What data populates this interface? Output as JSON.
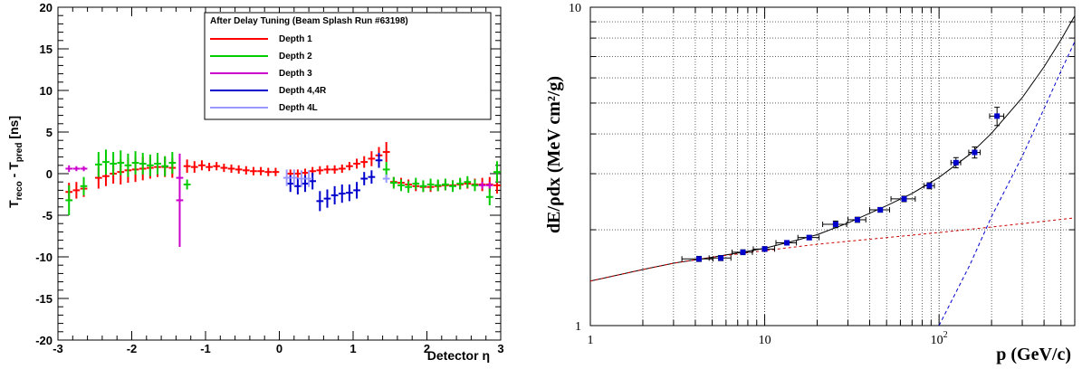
{
  "chart_data": [
    {
      "type": "scatter",
      "title": "",
      "xlabel": "Detector η",
      "ylabel_main": "T",
      "ylabel_sub1": "reco",
      "ylabel_mid": " - T",
      "ylabel_sub2": "pred",
      "ylabel_unit": " [ns]",
      "xlim": [
        -3,
        3
      ],
      "ylim": [
        -20,
        20
      ],
      "xticks": [
        "-3",
        "-2",
        "-1",
        "0",
        "1",
        "2",
        "3"
      ],
      "yticks": [
        "-20",
        "-15",
        "-10",
        "-5",
        "0",
        "5",
        "10",
        "15",
        "20"
      ],
      "legend_title": "After Delay Tuning  (Beam Splash Run #63198)",
      "legend_position": "top-right",
      "series": [
        {
          "name": "Depth 1",
          "color": "#ff0000",
          "points": [
            [
              -2.85,
              -2.2,
              1.1
            ],
            [
              -2.75,
              -2.0,
              1.0
            ],
            [
              -2.65,
              -1.8,
              1.0
            ],
            [
              -2.45,
              -0.5,
              1.3
            ],
            [
              -2.35,
              -0.3,
              1.2
            ],
            [
              -2.25,
              0.0,
              1.2
            ],
            [
              -2.15,
              0.2,
              1.5
            ],
            [
              -2.05,
              0.4,
              1.5
            ],
            [
              -1.95,
              0.5,
              1.5
            ],
            [
              -1.85,
              0.6,
              1.4
            ],
            [
              -1.75,
              0.7,
              1.3
            ],
            [
              -1.65,
              0.8,
              1.2
            ],
            [
              -1.55,
              0.8,
              1.2
            ],
            [
              -1.45,
              0.7,
              1.2
            ],
            [
              -1.25,
              0.9,
              0.8
            ],
            [
              -1.15,
              0.8,
              0.7
            ],
            [
              -1.05,
              1.0,
              0.6
            ],
            [
              -0.95,
              0.8,
              0.5
            ],
            [
              -0.85,
              0.9,
              0.5
            ],
            [
              -0.75,
              0.7,
              0.5
            ],
            [
              -0.65,
              0.6,
              0.5
            ],
            [
              -0.55,
              0.5,
              0.5
            ],
            [
              -0.45,
              0.4,
              0.5
            ],
            [
              -0.35,
              0.3,
              0.5
            ],
            [
              -0.25,
              0.3,
              0.5
            ],
            [
              -0.15,
              0.2,
              0.5
            ],
            [
              -0.05,
              0.2,
              0.5
            ],
            [
              0.15,
              0.0,
              0.5
            ],
            [
              0.25,
              0.0,
              0.5
            ],
            [
              0.35,
              0.1,
              0.5
            ],
            [
              0.45,
              0.3,
              0.5
            ],
            [
              0.55,
              0.4,
              0.5
            ],
            [
              0.65,
              0.5,
              0.5
            ],
            [
              0.75,
              0.5,
              0.5
            ],
            [
              0.85,
              0.6,
              0.5
            ],
            [
              0.95,
              0.9,
              0.5
            ],
            [
              1.05,
              1.2,
              0.6
            ],
            [
              1.15,
              1.4,
              0.7
            ],
            [
              1.25,
              1.8,
              0.9
            ],
            [
              1.35,
              2.2,
              1.0
            ],
            [
              1.45,
              2.6,
              1.2
            ],
            [
              1.55,
              -1.0,
              0.6
            ],
            [
              1.65,
              -1.1,
              0.6
            ],
            [
              1.75,
              -1.3,
              0.6
            ],
            [
              1.85,
              -1.5,
              0.6
            ],
            [
              1.95,
              -1.6,
              0.6
            ],
            [
              2.05,
              -1.6,
              0.6
            ],
            [
              2.15,
              -1.5,
              0.6
            ],
            [
              2.25,
              -1.4,
              0.6
            ],
            [
              2.35,
              -1.4,
              0.6
            ],
            [
              2.45,
              -1.3,
              0.6
            ],
            [
              2.55,
              -1.2,
              0.6
            ],
            [
              2.65,
              -1.3,
              0.7
            ],
            [
              2.75,
              -1.3,
              0.8
            ],
            [
              2.85,
              -1.3,
              0.9
            ],
            [
              2.95,
              -1.4,
              1.0
            ]
          ]
        },
        {
          "name": "Depth 2",
          "color": "#00cc00",
          "points": [
            [
              -2.85,
              -3.2,
              1.8
            ],
            [
              -2.65,
              -1.5,
              1.1
            ],
            [
              -2.45,
              1.1,
              1.5
            ],
            [
              -2.35,
              1.4,
              1.5
            ],
            [
              -2.25,
              1.2,
              1.4
            ],
            [
              -2.15,
              1.3,
              1.5
            ],
            [
              -2.05,
              1.0,
              1.4
            ],
            [
              -1.95,
              1.3,
              1.4
            ],
            [
              -1.85,
              1.2,
              1.3
            ],
            [
              -1.75,
              1.0,
              1.3
            ],
            [
              -1.65,
              1.2,
              1.3
            ],
            [
              -1.55,
              0.9,
              1.2
            ],
            [
              -1.45,
              1.3,
              1.3
            ],
            [
              -1.25,
              -1.3,
              0.6
            ],
            [
              1.45,
              0.5,
              0.9
            ],
            [
              1.55,
              -1.1,
              0.7
            ],
            [
              1.65,
              -1.4,
              0.7
            ],
            [
              1.75,
              -1.6,
              0.7
            ],
            [
              1.85,
              -1.2,
              0.7
            ],
            [
              1.95,
              -1.5,
              0.7
            ],
            [
              2.05,
              -1.3,
              0.7
            ],
            [
              2.15,
              -1.4,
              0.7
            ],
            [
              2.25,
              -1.3,
              0.7
            ],
            [
              2.35,
              -1.5,
              0.7
            ],
            [
              2.45,
              -1.2,
              0.7
            ],
            [
              2.55,
              -1.0,
              0.7
            ],
            [
              2.65,
              -1.4,
              0.7
            ],
            [
              2.85,
              -2.8,
              1.0
            ],
            [
              2.95,
              0.2,
              1.3
            ]
          ]
        },
        {
          "name": "Depth 3",
          "color": "#cc00cc",
          "points": [
            [
              -2.85,
              0.6,
              0.4
            ],
            [
              -2.75,
              0.6,
              0.3
            ],
            [
              -2.65,
              0.6,
              0.3
            ],
            [
              -1.35,
              -3.2,
              5.6
            ],
            [
              -1.35,
              -0.5,
              0.4
            ],
            [
              2.75,
              -1.4,
              0.4
            ],
            [
              2.85,
              -1.4,
              0.4
            ]
          ]
        },
        {
          "name": "Depth 4,4R",
          "color": "#0000cc",
          "points": [
            [
              0.15,
              -1.2,
              1.0
            ],
            [
              0.25,
              -1.5,
              1.0
            ],
            [
              0.35,
              -1.2,
              1.0
            ],
            [
              0.45,
              -0.9,
              1.0
            ],
            [
              0.55,
              -3.3,
              1.2
            ],
            [
              0.65,
              -3.0,
              1.1
            ],
            [
              0.75,
              -2.6,
              1.1
            ],
            [
              0.85,
              -2.4,
              1.1
            ],
            [
              0.95,
              -2.3,
              1.0
            ],
            [
              1.05,
              -2.0,
              1.0
            ],
            [
              1.15,
              -0.6,
              0.8
            ],
            [
              1.25,
              -0.4,
              0.8
            ],
            [
              1.35,
              1.6,
              0.9
            ]
          ]
        },
        {
          "name": "Depth 4L",
          "color": "#9999ff",
          "points": [
            [
              0.1,
              -0.5,
              1.0
            ],
            [
              0.2,
              -0.5,
              1.0
            ],
            [
              0.3,
              -0.6,
              1.0
            ],
            [
              0.4,
              -0.6,
              1.0
            ],
            [
              1.45,
              -0.6,
              0.5
            ]
          ]
        }
      ]
    },
    {
      "type": "line",
      "title": "",
      "xlabel": "p (GeV/c)",
      "ylabel": "dE/ρdx (MeV cm²/g)",
      "xscale": "log",
      "yscale": "log",
      "xlim": [
        1,
        600
      ],
      "ylim": [
        1,
        10
      ],
      "grid": true,
      "xticks": [
        {
          "value": 1,
          "label": "1",
          "sup": ""
        },
        {
          "value": 10,
          "label": "10",
          "sup": ""
        },
        {
          "value": 100,
          "label": "10",
          "sup": "2"
        }
      ],
      "yticks": [
        {
          "value": 1,
          "label": "1"
        },
        {
          "value": 10,
          "label": "10"
        }
      ],
      "series": [
        {
          "name": "",
          "color": "#0000cc",
          "kind": "points",
          "points": [
            [
              4.2,
              1.62,
              0.85,
              0.03
            ],
            [
              5.6,
              1.63,
              0.8,
              0.03
            ],
            [
              7.5,
              1.7,
              1.0,
              0.03
            ],
            [
              10.0,
              1.74,
              1.4,
              0.03
            ],
            [
              13.4,
              1.82,
              1.8,
              0.03
            ],
            [
              18.0,
              1.89,
              2.5,
              0.03
            ],
            [
              25.5,
              2.08,
              4.0,
              0.05
            ],
            [
              34.0,
              2.15,
              4.0,
              0.04
            ],
            [
              46.0,
              2.31,
              6.0,
              0.04
            ],
            [
              63.0,
              2.5,
              10.0,
              0.05
            ],
            [
              88.0,
              2.75,
              6.0,
              0.06
            ],
            [
              125.0,
              3.25,
              8.0,
              0.12
            ],
            [
              160.0,
              3.5,
              12.0,
              0.14
            ],
            [
              215.0,
              4.55,
              20.0,
              0.3
            ]
          ]
        },
        {
          "name": "",
          "color": "#000000",
          "kind": "line",
          "dash": "",
          "points": [
            [
              1.0,
              1.38
            ],
            [
              2.0,
              1.5
            ],
            [
              3.0,
              1.57
            ],
            [
              5.0,
              1.64
            ],
            [
              7.0,
              1.69
            ],
            [
              10.0,
              1.75
            ],
            [
              15.0,
              1.85
            ],
            [
              20.0,
              1.93
            ],
            [
              30.0,
              2.1
            ],
            [
              50.0,
              2.38
            ],
            [
              70.0,
              2.6
            ],
            [
              100.0,
              2.92
            ],
            [
              150.0,
              3.45
            ],
            [
              200.0,
              4.02
            ],
            [
              300.0,
              5.2
            ],
            [
              400.0,
              6.5
            ],
            [
              500.0,
              7.9
            ],
            [
              600.0,
              9.4
            ]
          ]
        },
        {
          "name": "",
          "color": "#cc0000",
          "kind": "line",
          "dash": "3,3",
          "points": [
            [
              1.0,
              1.38
            ],
            [
              2.0,
              1.5
            ],
            [
              3.0,
              1.57
            ],
            [
              5.0,
              1.64
            ],
            [
              10.0,
              1.72
            ],
            [
              20.0,
              1.8
            ],
            [
              50.0,
              1.89
            ],
            [
              100.0,
              1.96
            ],
            [
              200.0,
              2.04
            ],
            [
              300.0,
              2.09
            ],
            [
              600.0,
              2.18
            ]
          ]
        },
        {
          "name": "",
          "color": "#0000cc",
          "kind": "line",
          "dash": "4,3",
          "points": [
            [
              100.0,
              1.0
            ],
            [
              150.0,
              1.55
            ],
            [
              200.0,
              2.2
            ],
            [
              300.0,
              3.4
            ],
            [
              400.0,
              4.8
            ],
            [
              500.0,
              6.3
            ],
            [
              600.0,
              7.8
            ]
          ]
        }
      ]
    }
  ]
}
